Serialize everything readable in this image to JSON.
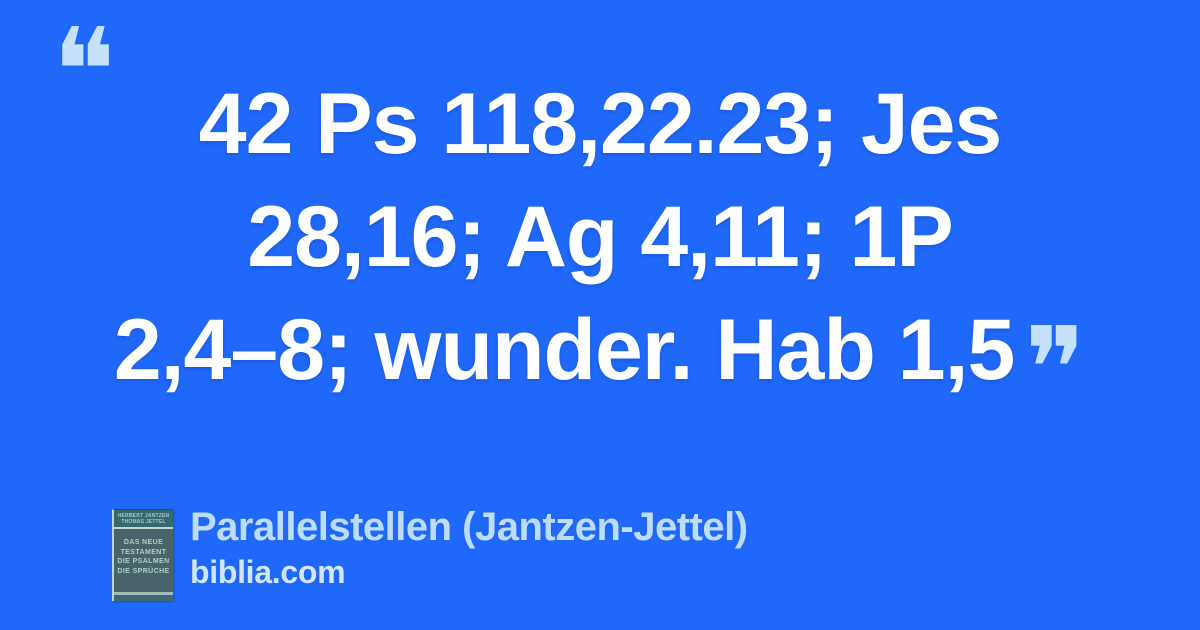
{
  "card": {
    "background_color": "#1f68fa"
  },
  "quote": {
    "open_mark": "❝",
    "close_mark": "❞",
    "mark_color": "#c6e1fa",
    "text_color": "#ffffff",
    "lines": [
      "42 Ps 118,22.23; Jes",
      "28,16; Ag 4,11; 1P",
      "2,4–8; wunder. Hab 1,5"
    ],
    "full_text": "42 Ps 118,22.23; Jes 28,16; Ag 4,11; 1P 2,4–8; wunder. Hab 1,5"
  },
  "footer": {
    "title": "Parallelstellen (Jantzen-Jettel)",
    "title_color": "#bddcf8",
    "site": "biblia.com",
    "site_color": "#d0e6fb",
    "book_cover": {
      "authors": [
        "HERBERT JANTZEN",
        "THOMAS JETTEL"
      ],
      "title_lines": [
        "DAS NEUE",
        "TESTAMENT",
        "DIE PSALMEN",
        "DIE SPRÜCHE"
      ],
      "edge_color": "#b8d8cf",
      "band_color": "#37686f",
      "cover_color": "#4a636a",
      "text_color": "#aad3c9"
    }
  }
}
